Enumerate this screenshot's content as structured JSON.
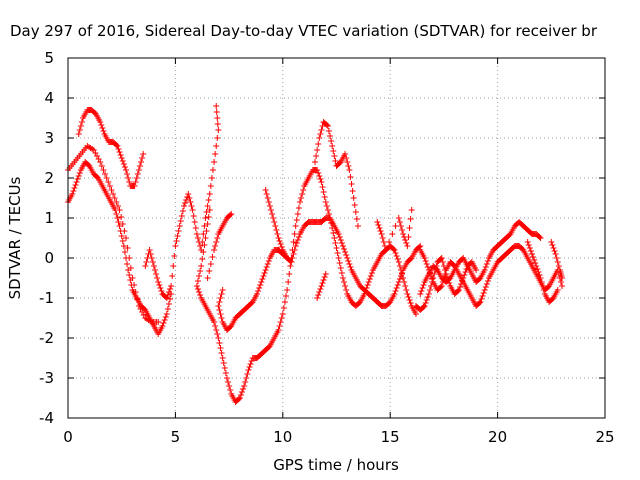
{
  "chart_data": {
    "type": "scatter",
    "title": "Day 297 of 2016, Sidereal Day-to-day VTEC variation (SDTVAR) for receiver br",
    "xlabel": "GPS time / hours",
    "ylabel": "SDTVAR / TECUs",
    "xlim": [
      0,
      25
    ],
    "ylim": [
      -4,
      5
    ],
    "xticks": [
      "0",
      "5",
      "10",
      "15",
      "20",
      "25"
    ],
    "yticks": [
      "-4",
      "-3",
      "-2",
      "-1",
      "0",
      "1",
      "2",
      "3",
      "4",
      "5"
    ],
    "grid": true,
    "legend": "none",
    "marker": "plus",
    "color": "#ff0000",
    "series": [
      {
        "name": "",
        "points": [
          [
            0.0,
            1.4
          ],
          [
            0.2,
            1.6
          ],
          [
            0.4,
            1.9
          ],
          [
            0.6,
            2.2
          ],
          [
            0.8,
            2.4
          ],
          [
            1.0,
            2.3
          ],
          [
            1.2,
            2.1
          ],
          [
            1.4,
            2.0
          ],
          [
            1.6,
            1.8
          ],
          [
            1.8,
            1.6
          ],
          [
            2.0,
            1.4
          ],
          [
            2.2,
            1.2
          ],
          [
            2.4,
            0.8
          ],
          [
            2.6,
            0.3
          ],
          [
            2.8,
            -0.3
          ],
          [
            3.0,
            -0.8
          ],
          [
            3.2,
            -1.0
          ],
          [
            3.4,
            -1.2
          ],
          [
            3.6,
            -1.3
          ],
          [
            3.8,
            -1.5
          ],
          [
            4.0,
            -1.7
          ],
          [
            4.2,
            -1.9
          ],
          [
            4.4,
            -1.7
          ],
          [
            4.6,
            -1.4
          ],
          [
            4.8,
            -0.9
          ],
          [
            0.0,
            2.2
          ],
          [
            0.3,
            2.4
          ],
          [
            0.6,
            2.6
          ],
          [
            0.9,
            2.8
          ],
          [
            1.2,
            2.7
          ],
          [
            1.5,
            2.4
          ],
          [
            1.8,
            2.0
          ],
          [
            2.1,
            1.6
          ],
          [
            2.4,
            1.2
          ],
          [
            2.7,
            0.5
          ],
          [
            3.0,
            -0.5
          ],
          [
            3.3,
            -1.2
          ],
          [
            3.6,
            -1.5
          ],
          [
            3.9,
            -1.6
          ],
          [
            4.2,
            -1.6
          ],
          [
            0.5,
            3.1
          ],
          [
            0.7,
            3.5
          ],
          [
            0.9,
            3.7
          ],
          [
            1.1,
            3.7
          ],
          [
            1.3,
            3.6
          ],
          [
            1.5,
            3.4
          ],
          [
            1.7,
            3.1
          ],
          [
            1.9,
            2.9
          ],
          [
            2.1,
            2.9
          ],
          [
            2.3,
            2.8
          ],
          [
            2.5,
            2.5
          ],
          [
            2.7,
            2.2
          ],
          [
            2.9,
            1.8
          ],
          [
            3.1,
            1.8
          ],
          [
            3.3,
            2.2
          ],
          [
            3.5,
            2.6
          ],
          [
            3.6,
            -0.2
          ],
          [
            3.8,
            0.2
          ],
          [
            4.0,
            -0.2
          ],
          [
            4.2,
            -0.6
          ],
          [
            4.4,
            -0.9
          ],
          [
            4.6,
            -1.0
          ],
          [
            4.8,
            -0.7
          ],
          [
            5.0,
            0.3
          ],
          [
            5.2,
            0.8
          ],
          [
            5.4,
            1.3
          ],
          [
            5.6,
            1.6
          ],
          [
            5.8,
            1.2
          ],
          [
            6.0,
            0.6
          ],
          [
            6.2,
            0.2
          ],
          [
            6.4,
            1.0
          ],
          [
            6.6,
            1.6
          ],
          [
            6.8,
            2.4
          ],
          [
            7.0,
            3.2
          ],
          [
            6.9,
            3.8
          ],
          [
            6.6,
            1.2
          ],
          [
            6.4,
            0.5
          ],
          [
            6.2,
            -0.2
          ],
          [
            6.0,
            -0.7
          ],
          [
            6.2,
            -1.0
          ],
          [
            6.4,
            -1.2
          ],
          [
            6.6,
            -1.4
          ],
          [
            6.8,
            -1.6
          ],
          [
            7.0,
            -2.0
          ],
          [
            7.2,
            -2.5
          ],
          [
            7.4,
            -3.0
          ],
          [
            7.6,
            -3.4
          ],
          [
            7.8,
            -3.6
          ],
          [
            8.0,
            -3.5
          ],
          [
            8.2,
            -3.2
          ],
          [
            8.4,
            -2.8
          ],
          [
            8.6,
            -2.5
          ],
          [
            8.8,
            -2.5
          ],
          [
            9.0,
            -2.4
          ],
          [
            9.2,
            -2.3
          ],
          [
            9.4,
            -2.2
          ],
          [
            9.6,
            -2.0
          ],
          [
            9.8,
            -1.8
          ],
          [
            10.0,
            -1.4
          ],
          [
            10.2,
            -0.8
          ],
          [
            10.4,
            0.0
          ],
          [
            10.6,
            0.8
          ],
          [
            10.8,
            1.4
          ],
          [
            11.0,
            1.8
          ],
          [
            11.2,
            2.0
          ],
          [
            11.4,
            2.2
          ],
          [
            11.6,
            2.2
          ],
          [
            11.8,
            1.9
          ],
          [
            12.0,
            1.4
          ],
          [
            12.2,
            1.0
          ],
          [
            12.4,
            0.5
          ],
          [
            12.6,
            0.0
          ],
          [
            12.8,
            -0.5
          ],
          [
            13.0,
            -0.9
          ],
          [
            13.2,
            -1.1
          ],
          [
            13.4,
            -1.2
          ],
          [
            13.6,
            -1.1
          ],
          [
            13.8,
            -0.9
          ],
          [
            14.0,
            -0.6
          ],
          [
            14.2,
            -0.3
          ],
          [
            14.4,
            -0.1
          ],
          [
            14.6,
            0.1
          ],
          [
            14.8,
            0.2
          ],
          [
            15.0,
            0.3
          ],
          [
            15.2,
            0.2
          ],
          [
            15.4,
            -0.1
          ],
          [
            15.6,
            -0.5
          ],
          [
            15.8,
            -0.9
          ],
          [
            16.0,
            -1.2
          ],
          [
            16.2,
            -1.4
          ],
          [
            6.5,
            -0.5
          ],
          [
            6.8,
            0.2
          ],
          [
            7.0,
            0.6
          ],
          [
            7.2,
            0.8
          ],
          [
            7.4,
            1.0
          ],
          [
            7.6,
            1.1
          ],
          [
            7.2,
            -0.8
          ],
          [
            7.0,
            -1.2
          ],
          [
            7.2,
            -1.6
          ],
          [
            7.4,
            -1.8
          ],
          [
            7.6,
            -1.7
          ],
          [
            7.8,
            -1.5
          ],
          [
            8.0,
            -1.4
          ],
          [
            8.2,
            -1.3
          ],
          [
            8.4,
            -1.2
          ],
          [
            8.6,
            -1.1
          ],
          [
            8.8,
            -0.9
          ],
          [
            9.0,
            -0.6
          ],
          [
            9.2,
            -0.3
          ],
          [
            9.4,
            0.0
          ],
          [
            9.6,
            0.2
          ],
          [
            9.8,
            0.2
          ],
          [
            10.0,
            0.1
          ],
          [
            10.2,
            0.0
          ],
          [
            10.4,
            -0.1
          ],
          [
            10.6,
            0.3
          ],
          [
            10.8,
            0.6
          ],
          [
            11.0,
            0.8
          ],
          [
            11.2,
            0.9
          ],
          [
            11.4,
            0.9
          ],
          [
            11.6,
            0.9
          ],
          [
            11.8,
            0.9
          ],
          [
            12.0,
            1.0
          ],
          [
            12.2,
            1.0
          ],
          [
            12.4,
            0.8
          ],
          [
            12.6,
            0.6
          ],
          [
            12.8,
            0.3
          ],
          [
            13.0,
            0.0
          ],
          [
            13.2,
            -0.3
          ],
          [
            13.4,
            -0.5
          ],
          [
            13.6,
            -0.7
          ],
          [
            13.8,
            -0.8
          ],
          [
            14.0,
            -0.9
          ],
          [
            14.2,
            -1.0
          ],
          [
            14.4,
            -1.1
          ],
          [
            14.6,
            -1.2
          ],
          [
            14.8,
            -1.2
          ],
          [
            15.0,
            -1.1
          ],
          [
            15.2,
            -0.9
          ],
          [
            15.4,
            -0.6
          ],
          [
            15.6,
            -0.3
          ],
          [
            15.8,
            -0.1
          ],
          [
            16.0,
            0.0
          ],
          [
            16.2,
            0.2
          ],
          [
            16.4,
            0.3
          ],
          [
            9.2,
            1.7
          ],
          [
            9.4,
            1.3
          ],
          [
            9.6,
            0.9
          ],
          [
            9.8,
            0.5
          ],
          [
            10.0,
            0.2
          ],
          [
            10.2,
            0.0
          ],
          [
            11.5,
            2.4
          ],
          [
            11.7,
            3.0
          ],
          [
            11.9,
            3.4
          ],
          [
            12.1,
            3.3
          ],
          [
            12.3,
            2.8
          ],
          [
            12.5,
            2.3
          ],
          [
            12.7,
            2.4
          ],
          [
            12.9,
            2.6
          ],
          [
            13.1,
            2.2
          ],
          [
            13.3,
            1.5
          ],
          [
            13.5,
            0.8
          ],
          [
            11.6,
            -1.0
          ],
          [
            11.8,
            -0.7
          ],
          [
            12.0,
            -0.4
          ],
          [
            14.4,
            0.9
          ],
          [
            14.6,
            0.6
          ],
          [
            14.8,
            0.2
          ],
          [
            15.4,
            1.0
          ],
          [
            15.6,
            0.6
          ],
          [
            15.8,
            0.3
          ],
          [
            16.0,
            1.2
          ],
          [
            16.4,
            -0.9
          ],
          [
            16.6,
            -0.6
          ],
          [
            16.8,
            -0.4
          ],
          [
            17.0,
            -0.2
          ],
          [
            17.2,
            -0.3
          ],
          [
            17.4,
            -0.5
          ],
          [
            17.6,
            -0.6
          ],
          [
            17.8,
            -0.5
          ],
          [
            18.0,
            -0.3
          ],
          [
            18.2,
            -0.1
          ],
          [
            18.4,
            0.0
          ],
          [
            18.6,
            -0.2
          ],
          [
            18.8,
            -0.4
          ],
          [
            19.0,
            -0.6
          ],
          [
            19.2,
            -0.5
          ],
          [
            19.4,
            -0.3
          ],
          [
            19.6,
            0.0
          ],
          [
            19.8,
            0.2
          ],
          [
            20.0,
            0.3
          ],
          [
            20.2,
            0.4
          ],
          [
            20.4,
            0.5
          ],
          [
            20.6,
            0.6
          ],
          [
            20.8,
            0.8
          ],
          [
            21.0,
            0.9
          ],
          [
            21.2,
            0.8
          ],
          [
            21.4,
            0.7
          ],
          [
            21.6,
            0.6
          ],
          [
            21.8,
            0.6
          ],
          [
            22.0,
            0.5
          ],
          [
            16.4,
            0.2
          ],
          [
            16.6,
            0.0
          ],
          [
            16.8,
            -0.3
          ],
          [
            17.0,
            -0.6
          ],
          [
            17.2,
            -0.8
          ],
          [
            17.4,
            -0.7
          ],
          [
            17.6,
            -0.3
          ],
          [
            17.8,
            -0.1
          ],
          [
            18.0,
            -0.2
          ],
          [
            18.2,
            -0.4
          ],
          [
            18.4,
            -0.6
          ],
          [
            18.6,
            -0.8
          ],
          [
            18.8,
            -1.0
          ],
          [
            19.0,
            -1.2
          ],
          [
            19.2,
            -1.1
          ],
          [
            19.4,
            -0.8
          ],
          [
            19.6,
            -0.5
          ],
          [
            19.8,
            -0.3
          ],
          [
            20.0,
            -0.1
          ],
          [
            20.2,
            0.0
          ],
          [
            20.4,
            0.1
          ],
          [
            20.6,
            0.2
          ],
          [
            20.8,
            0.3
          ],
          [
            21.0,
            0.3
          ],
          [
            21.2,
            0.2
          ],
          [
            21.4,
            0.0
          ],
          [
            21.6,
            -0.2
          ],
          [
            21.8,
            -0.4
          ],
          [
            22.0,
            -0.6
          ],
          [
            22.2,
            -0.8
          ],
          [
            22.4,
            -0.7
          ],
          [
            22.6,
            -0.5
          ],
          [
            22.8,
            -0.3
          ],
          [
            23.0,
            -0.7
          ],
          [
            21.4,
            0.4
          ],
          [
            21.6,
            0.1
          ],
          [
            21.8,
            -0.2
          ],
          [
            22.0,
            -0.5
          ],
          [
            22.2,
            -0.9
          ],
          [
            22.4,
            -1.1
          ],
          [
            22.6,
            -1.0
          ],
          [
            22.8,
            -0.8
          ],
          [
            22.5,
            0.4
          ],
          [
            22.7,
            0.1
          ],
          [
            22.9,
            -0.3
          ],
          [
            23.0,
            -0.5
          ],
          [
            16.2,
            -1.2
          ],
          [
            16.4,
            -1.3
          ],
          [
            16.6,
            -1.2
          ],
          [
            16.8,
            -0.9
          ],
          [
            17.0,
            -0.5
          ],
          [
            17.2,
            -0.1
          ],
          [
            17.4,
            0.0
          ],
          [
            17.6,
            -0.4
          ],
          [
            17.8,
            -0.7
          ],
          [
            18.0,
            -0.9
          ],
          [
            18.2,
            -0.8
          ],
          [
            18.4,
            -0.5
          ],
          [
            18.6,
            -0.2
          ],
          [
            18.8,
            -0.1
          ],
          [
            19.0,
            -0.3
          ]
        ]
      }
    ]
  }
}
